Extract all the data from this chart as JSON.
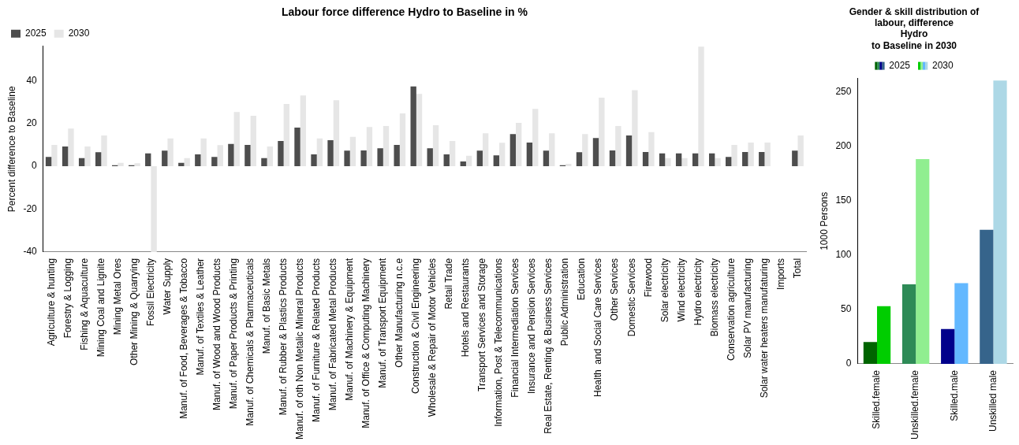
{
  "chart_data": [
    {
      "type": "bar",
      "title": "Labour force difference Hydro to Baseline in %",
      "ylabel": "Percent difference to Baseline",
      "categories": [
        "Agriculture & hunting",
        "Forestry & Logging",
        "Fishing & Aquaculture",
        "Mining Coal and Lignite",
        "Mining Metal Ores",
        "Other Mining & Quarrying",
        "Fossil Electricity",
        "Water Supply",
        "Manuf. of Food, Beverages & Tobacco",
        "Manuf. of Textiles & Leather",
        "Manuf. of Wood and Wood Products",
        "Manuf. of Paper Products & Printing",
        "Manuf. of Chemicals & Pharmaceuticals",
        "Manuf. of Basic Metals",
        "Manuf. of Rubber & Plastics Products",
        "Manuf. of oth Non Metalic Mineral Products",
        "Manuf. of Furniture & Related Products",
        "Manuf. of Fabricated Metal Products",
        "Manuf. of Machinery & Equipment",
        "Manuf. of Office & Computing Machinery",
        "Manuf. of Transport Equipment",
        "Other Manufacturing n.c.e",
        "Construction & Civil Engineering",
        "Wholesale & Repair of Motor Vehicles",
        "Retail Trade",
        "Hotels and Restaurants",
        "Transport Services and Storage",
        "Information, Post & Telecommunications",
        "Financial Intermediation Services",
        "Insurance and Pension Services",
        "Real Estate, Renting & Business Services",
        "Public Administration",
        "Education",
        "Health  and Social Care Services",
        "Other Services",
        "Domestic Services",
        "Firewood",
        "Solar electricity",
        "Wind electricity",
        "Hydro electricity",
        "Biomass electricity",
        "Conservation agriculture",
        "Solar PV manufacturing",
        "Solar water heaters manufaturing",
        "Imports",
        "Total"
      ],
      "series": [
        {
          "name": "2025",
          "color": "#4d4d4d",
          "values": [
            4.4,
            9.2,
            3.8,
            6.6,
            0.5,
            0.5,
            6,
            7.3,
            1.6,
            5.6,
            4.4,
            10.4,
            10,
            3.8,
            11.8,
            18.1,
            5.6,
            12.2,
            7.3,
            7.4,
            8.4,
            10,
            37.3,
            8.4,
            5.6,
            2.2,
            7.3,
            5.1,
            15,
            11.1,
            7.3,
            0.5,
            6.6,
            13.2,
            7.4,
            14.4,
            6.7,
            6,
            6,
            6,
            6,
            4.4,
            6.7,
            6.7,
            0,
            7.3
          ]
        },
        {
          "name": "2030",
          "color": "#e6e6e6",
          "values": [
            10,
            17.6,
            9.2,
            14.4,
            1.6,
            1.4,
            -40,
            13,
            3.8,
            13,
            9.9,
            25.3,
            23.6,
            9.2,
            29.1,
            33,
            13,
            30.8,
            13.7,
            18.3,
            18.8,
            24.7,
            33.8,
            19.2,
            11.8,
            4.9,
            15.4,
            11,
            20.3,
            26.8,
            15.4,
            1.1,
            15,
            32,
            18.8,
            35.5,
            15.9,
            3.8,
            3.8,
            55.8,
            3.8,
            10,
            11.1,
            11.1,
            0,
            14.4
          ]
        }
      ],
      "ylim": [
        -40,
        56
      ],
      "yticks": [
        -40,
        -20,
        0,
        20,
        40
      ],
      "grid": false,
      "legend": "top left"
    },
    {
      "type": "bar",
      "title": "Gender & skill distribution of\nlabour, difference\nHydro\nto Baseline in 2030",
      "ylabel": "1000 Persons",
      "categories": [
        "Skilled.female",
        "Unskilled.female",
        "Skilled.male",
        "Unskilled male"
      ],
      "series": [
        {
          "name": "2025",
          "color": "#4d4d4d",
          "colors": [
            "#006400",
            "#2e8b57",
            "#00008b",
            "#36648b"
          ],
          "values": [
            20,
            73,
            32,
            123
          ]
        },
        {
          "name": "2030",
          "color": "#d3d3d3",
          "colors": [
            "#00cd00",
            "#90ee90",
            "#63b8ff",
            "#add8e6"
          ],
          "values": [
            53,
            188,
            74,
            260
          ]
        }
      ],
      "ylim": [
        0,
        262
      ],
      "yticks": [
        0,
        50,
        100,
        150,
        200,
        250
      ],
      "grid": false,
      "legend": "top"
    }
  ]
}
